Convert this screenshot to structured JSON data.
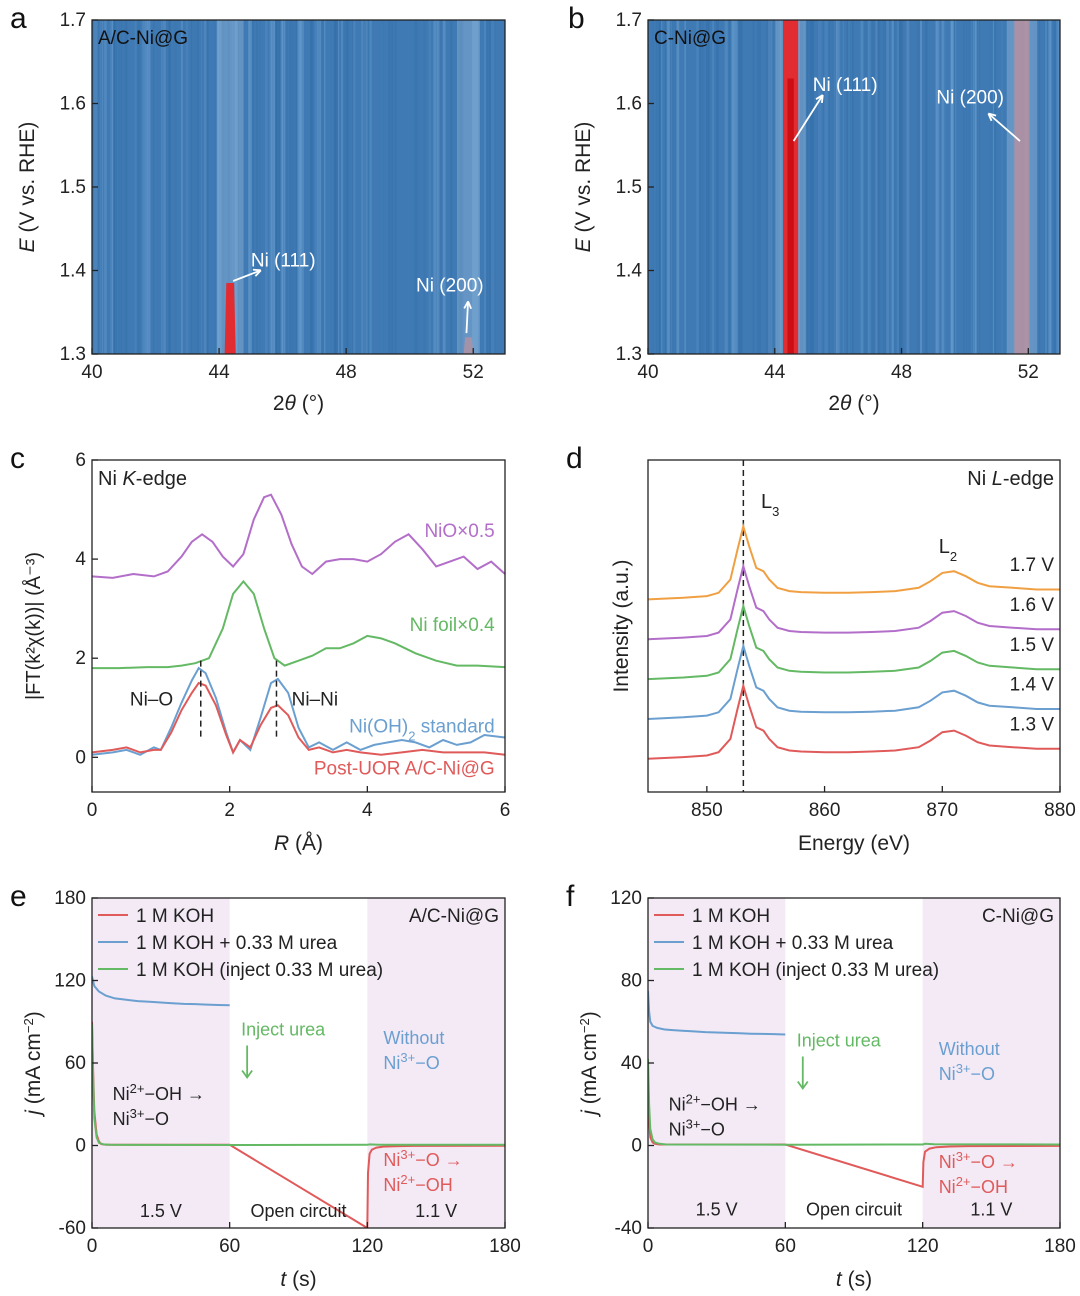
{
  "chart_data": [
    {
      "panel": "a",
      "type": "heatmap",
      "label": "A/C-Ni@G",
      "xlabel_parts": [
        "2",
        "θ",
        " (°)"
      ],
      "ylabel_parts": [
        "E",
        " (V vs. RHE)"
      ],
      "xlim": [
        40,
        53
      ],
      "ylim": [
        1.3,
        1.7
      ],
      "xticks": [
        40,
        44,
        48,
        52
      ],
      "yticks": [
        1.3,
        1.4,
        1.5,
        1.6,
        1.7
      ],
      "background_color": "#3f7ab4",
      "peaks": [
        {
          "label": "Ni (111)",
          "x": 44.35,
          "width": 0.35,
          "color": "#e8262a",
          "y_top": 1.385
        },
        {
          "label": "Ni (200)",
          "x": 51.85,
          "width": 0.3,
          "color": "#d99090",
          "y_top": 1.32
        }
      ],
      "annotations": [
        {
          "text": "Ni (111)",
          "x": 45.0,
          "y": 1.405
        },
        {
          "text": "Ni (200)",
          "x": 50.2,
          "y": 1.375
        }
      ]
    },
    {
      "panel": "b",
      "type": "heatmap",
      "label": "C-Ni@G",
      "xlabel_parts": [
        "2",
        "θ",
        " (°)"
      ],
      "ylabel_parts": [
        "E",
        " (V vs. RHE)"
      ],
      "xlim": [
        40,
        53
      ],
      "ylim": [
        1.3,
        1.7
      ],
      "xticks": [
        40,
        44,
        48,
        52
      ],
      "yticks": [
        1.3,
        1.4,
        1.5,
        1.6,
        1.7
      ],
      "background_color": "#3f7ab4",
      "peaks": [
        {
          "label": "Ni (111)",
          "x": 44.5,
          "width": 0.4,
          "color": "#e8262a",
          "y_top": 1.7
        },
        {
          "label": "Ni (200)",
          "x": 51.8,
          "width": 0.4,
          "color": "#d99090",
          "y_top": 1.7
        }
      ],
      "annotations": [
        {
          "text": "Ni (111)",
          "x": 45.2,
          "y": 1.615
        },
        {
          "text": "Ni (200)",
          "x": 49.1,
          "y": 1.6
        }
      ]
    },
    {
      "panel": "c",
      "type": "line",
      "label_parts": [
        "Ni ",
        "K",
        "-edge"
      ],
      "xlabel_parts": [
        "R",
        " (Å)"
      ],
      "ylabel": "|FT(k²χ(k))| (Å⁻³)",
      "xlim": [
        0,
        6
      ],
      "ylim": [
        -0.7,
        6
      ],
      "xticks": [
        0,
        2,
        4,
        6
      ],
      "yticks": [
        0,
        2,
        4,
        6
      ],
      "series": [
        {
          "name": "NiO×0.5",
          "color": "#b36ec9",
          "x": [
            0,
            0.3,
            0.6,
            0.9,
            1.1,
            1.3,
            1.45,
            1.6,
            1.75,
            1.9,
            2.05,
            2.2,
            2.35,
            2.5,
            2.6,
            2.75,
            2.9,
            3.05,
            3.2,
            3.4,
            3.6,
            3.8,
            4.0,
            4.2,
            4.4,
            4.6,
            4.8,
            5.0,
            5.2,
            5.4,
            5.6,
            5.8,
            6.0
          ],
          "y": [
            3.65,
            3.62,
            3.7,
            3.65,
            3.75,
            4.05,
            4.35,
            4.5,
            4.35,
            4.05,
            3.85,
            4.1,
            4.8,
            5.25,
            5.3,
            4.9,
            4.3,
            3.85,
            3.7,
            3.95,
            4.0,
            4.0,
            3.95,
            4.1,
            4.35,
            4.5,
            4.2,
            3.85,
            3.95,
            4.05,
            3.8,
            3.95,
            3.7
          ]
        },
        {
          "name": "Ni foil×0.4",
          "color": "#64b964",
          "x": [
            0,
            0.4,
            0.8,
            1.1,
            1.3,
            1.5,
            1.7,
            1.9,
            2.05,
            2.2,
            2.35,
            2.5,
            2.65,
            2.8,
            3.0,
            3.2,
            3.4,
            3.6,
            3.8,
            4.0,
            4.2,
            4.4,
            4.7,
            5.0,
            5.3,
            5.6,
            6.0
          ],
          "y": [
            1.8,
            1.8,
            1.82,
            1.82,
            1.85,
            1.9,
            2.0,
            2.6,
            3.3,
            3.55,
            3.3,
            2.6,
            2.0,
            1.85,
            1.95,
            2.05,
            2.2,
            2.2,
            2.3,
            2.45,
            2.4,
            2.3,
            2.1,
            1.95,
            1.85,
            1.85,
            1.82
          ]
        },
        {
          "name": "Ni(OH)₂ standard",
          "color": "#6a9fd0",
          "x": [
            0,
            0.3,
            0.5,
            0.7,
            0.9,
            1.0,
            1.15,
            1.3,
            1.45,
            1.55,
            1.65,
            1.8,
            1.95,
            2.05,
            2.15,
            2.3,
            2.45,
            2.6,
            2.7,
            2.85,
            3.0,
            3.15,
            3.3,
            3.5,
            3.7,
            3.9,
            4.1,
            4.3,
            4.5,
            4.7,
            4.9,
            5.1,
            5.3,
            5.5,
            5.7,
            6.0
          ],
          "y": [
            0.05,
            0.1,
            0.15,
            0.05,
            0.2,
            0.15,
            0.6,
            1.1,
            1.55,
            1.8,
            1.7,
            1.2,
            0.5,
            0.1,
            0.35,
            0.15,
            0.8,
            1.5,
            1.58,
            1.3,
            0.6,
            0.2,
            0.3,
            0.15,
            0.3,
            0.15,
            0.25,
            0.3,
            0.35,
            0.3,
            0.2,
            0.35,
            0.25,
            0.3,
            0.45,
            0.4
          ]
        },
        {
          "name": "Post-UOR A/C-Ni@G",
          "color": "#e05a5a",
          "x": [
            0,
            0.3,
            0.5,
            0.7,
            0.9,
            1.0,
            1.15,
            1.3,
            1.45,
            1.55,
            1.65,
            1.8,
            1.95,
            2.05,
            2.15,
            2.3,
            2.45,
            2.6,
            2.7,
            2.85,
            3.0,
            3.15,
            3.3,
            3.5,
            3.7,
            3.9,
            4.2,
            4.5,
            4.8,
            5.1,
            5.4,
            5.7,
            6.0
          ],
          "y": [
            0.1,
            0.15,
            0.2,
            0.1,
            0.15,
            0.15,
            0.5,
            0.95,
            1.3,
            1.5,
            1.45,
            1.05,
            0.45,
            0.1,
            0.35,
            0.2,
            0.65,
            1.0,
            1.05,
            0.85,
            0.4,
            0.15,
            0.2,
            0.1,
            0.15,
            0.1,
            0.05,
            0.1,
            0.15,
            0.1,
            0.1,
            0.1,
            0.05
          ]
        }
      ],
      "annotations": [
        {
          "text": "NiO×0.5",
          "x": 5.85,
          "y": 4.45,
          "color": "#b36ec9",
          "anchor": "end"
        },
        {
          "text": "Ni foil×0.4",
          "x": 5.85,
          "y": 2.55,
          "color": "#64b964",
          "anchor": "end"
        },
        {
          "text": "Ni(OH)",
          "sub": "2",
          "tail": " standard",
          "x": 5.85,
          "y": 0.5,
          "color": "#6a9fd0",
          "anchor": "end"
        },
        {
          "text": "Post-UOR A/C-Ni@G",
          "x": 5.85,
          "y": -0.35,
          "color": "#e05a5a",
          "anchor": "end"
        },
        {
          "text": "Ni–O",
          "x": 0.55,
          "y": 1.05,
          "color": "#222222",
          "anchor": "start"
        },
        {
          "text": "Ni–Ni",
          "x": 2.9,
          "y": 1.05,
          "color": "#222222",
          "anchor": "start"
        }
      ],
      "dashed_markers": [
        1.58,
        2.68
      ]
    },
    {
      "panel": "d",
      "type": "line",
      "label_parts": [
        "Ni ",
        "L",
        "-edge"
      ],
      "xlabel": "Energy (eV)",
      "ylabel": "Intensity (a.u.)",
      "xlim": [
        845,
        880
      ],
      "ylim": [
        0,
        10
      ],
      "xticks": [
        850,
        860,
        870,
        880
      ],
      "dashed_x": 853.1,
      "peak_labels": [
        {
          "text": "L",
          "sub": "3",
          "x": 854.6,
          "y": 8.55
        },
        {
          "text": "L",
          "sub": "2",
          "x": 869.7,
          "y": 7.2
        }
      ],
      "series": [
        {
          "name": "1.7 V",
          "color": "#f0a043",
          "offset": 5.8,
          "scale": 1.0
        },
        {
          "name": "1.6 V",
          "color": "#b36ec9",
          "offset": 4.6,
          "scale": 1.0
        },
        {
          "name": "1.5 V",
          "color": "#64b964",
          "offset": 3.4,
          "scale": 1.0
        },
        {
          "name": "1.4 V",
          "color": "#6a9fd0",
          "offset": 2.2,
          "scale": 1.0
        },
        {
          "name": "1.3 V",
          "color": "#e05a5a",
          "offset": 1.0,
          "scale": 1.0
        }
      ],
      "profile_x": [
        845,
        848,
        850,
        851,
        852,
        852.6,
        853.1,
        853.6,
        854.2,
        854.8,
        855.3,
        856,
        857,
        858,
        860,
        862,
        864,
        866,
        868,
        869,
        870,
        871,
        872,
        873,
        874,
        876,
        878,
        880
      ],
      "profile_y": [
        0.0,
        0.05,
        0.1,
        0.2,
        0.6,
        1.5,
        2.2,
        1.6,
        0.95,
        0.85,
        0.6,
        0.35,
        0.25,
        0.22,
        0.2,
        0.2,
        0.22,
        0.25,
        0.35,
        0.55,
        0.8,
        0.85,
        0.7,
        0.5,
        0.4,
        0.35,
        0.3,
        0.3
      ]
    },
    {
      "panel": "e",
      "type": "line",
      "label": "A/C-Ni@G",
      "xlabel_parts": [
        "t",
        " (s)"
      ],
      "ylabel_parts": [
        "j",
        " (mA cm",
        "−2",
        ")"
      ],
      "xlim": [
        0,
        180
      ],
      "ylim": [
        -60,
        180
      ],
      "xticks": [
        0,
        60,
        120,
        180
      ],
      "yticks": [
        -60,
        0,
        60,
        120,
        180
      ],
      "shaded_regions": [
        [
          0,
          60
        ],
        [
          120,
          180
        ]
      ],
      "legend": [
        "1 M KOH",
        "1 M KOH + 0.33 M urea",
        "1 M KOH (inject 0.33 M urea)"
      ],
      "legend_placement": "top-left",
      "series": [
        {
          "name": "1 M KOH",
          "color": "#e05a5a",
          "x": [
            0,
            0.5,
            1,
            2,
            3,
            4,
            6,
            60,
            120,
            120.3,
            121,
            122,
            124,
            127,
            132,
            140,
            180
          ],
          "y": [
            90,
            55,
            25,
            8,
            3,
            1,
            0.5,
            0.5,
            -60,
            -20,
            -6,
            -3,
            -1.5,
            -0.8,
            -0.5,
            -0.3,
            -0.2
          ]
        },
        {
          "name": "1 M KOH + 0.33 M urea",
          "color": "#6a9fd0",
          "x": [
            0,
            1,
            3,
            6,
            10,
            15,
            20,
            25,
            30,
            35,
            40,
            45,
            50,
            55,
            60
          ],
          "y": [
            123,
            116,
            112,
            109,
            107,
            106,
            105,
            104.5,
            104,
            103.5,
            103,
            102.8,
            102.5,
            102.2,
            102
          ]
        },
        {
          "name": "1 M KOH (inject 0.33 M urea)",
          "color": "#64b964",
          "x": [
            0,
            0.5,
            1,
            2,
            3,
            5,
            8,
            60,
            120,
            121,
            125,
            130,
            180
          ],
          "y": [
            88,
            50,
            20,
            6,
            2,
            0.8,
            0.5,
            0.4,
            0.5,
            0.8,
            0.6,
            0.5,
            0.5
          ]
        }
      ],
      "annotations": [
        {
          "lines": [
            [
              "Ni",
              "2+",
              "−OH →"
            ],
            [
              "Ni",
              "3+",
              "−O"
            ]
          ],
          "x": 9,
          "y": 33,
          "color": "#222222"
        },
        {
          "lines": [
            [
              "Inject urea"
            ]
          ],
          "x": 65,
          "y": 80,
          "color": "#64b964"
        },
        {
          "lines": [
            [
              "Without"
            ],
            [
              "Ni",
              "3+",
              "−O"
            ]
          ],
          "x": 127,
          "y": 74,
          "color": "#6a9fd0"
        },
        {
          "lines": [
            [
              "Ni",
              "3+",
              "−O →"
            ],
            [
              "Ni",
              "2+",
              "−OH"
            ]
          ],
          "x": 127,
          "y": -15,
          "color": "#e05a5a"
        },
        {
          "lines": [
            [
              "1.5 V"
            ]
          ],
          "x": 30,
          "y": -52,
          "color": "#222222",
          "anchor": "middle"
        },
        {
          "lines": [
            [
              "Open circuit"
            ]
          ],
          "x": 90,
          "y": -52,
          "color": "#222222",
          "anchor": "middle"
        },
        {
          "lines": [
            [
              "1.1 V"
            ]
          ],
          "x": 150,
          "y": -52,
          "color": "#222222",
          "anchor": "middle"
        }
      ]
    },
    {
      "panel": "f",
      "type": "line",
      "label": "C-Ni@G",
      "xlabel_parts": [
        "t",
        " (s)"
      ],
      "ylabel_parts": [
        "j",
        " (mA cm",
        "−2",
        ")"
      ],
      "xlim": [
        0,
        180
      ],
      "ylim": [
        -40,
        120
      ],
      "xticks": [
        0,
        60,
        120,
        180
      ],
      "yticks": [
        -40,
        0,
        40,
        80,
        120
      ],
      "shaded_regions": [
        [
          0,
          60
        ],
        [
          120,
          180
        ]
      ],
      "legend": [
        "1 M KOH",
        "1 M KOH + 0.33 M urea",
        "1 M KOH (inject 0.33 M urea)"
      ],
      "legend_placement": "top-left",
      "series": [
        {
          "name": "1 M KOH",
          "color": "#e05a5a",
          "x": [
            0,
            0.5,
            1,
            2,
            3,
            5,
            60,
            120,
            120.3,
            121,
            123,
            126,
            132,
            140,
            180
          ],
          "y": [
            30,
            12,
            4,
            1.5,
            0.8,
            0.5,
            0.5,
            -20,
            -8,
            -3,
            -1.5,
            -0.8,
            -0.5,
            -0.3,
            -0.2
          ]
        },
        {
          "name": "1 M KOH + 0.33 M urea",
          "color": "#6a9fd0",
          "x": [
            0,
            0.5,
            1,
            2,
            4,
            7,
            10,
            15,
            20,
            25,
            30,
            35,
            40,
            45,
            50,
            55,
            60
          ],
          "y": [
            75,
            65,
            60,
            58,
            57,
            56.3,
            56,
            55.6,
            55.3,
            55,
            54.8,
            54.6,
            54.4,
            54.2,
            54.1,
            54,
            53.8
          ]
        },
        {
          "name": "1 M KOH (inject 0.33 M urea)",
          "color": "#64b964",
          "x": [
            0,
            0.5,
            1,
            2,
            3,
            5,
            8,
            60,
            120,
            121,
            125,
            180
          ],
          "y": [
            42,
            20,
            8,
            3,
            1.5,
            0.8,
            0.5,
            0.4,
            0.5,
            0.8,
            0.6,
            0.5
          ]
        }
      ],
      "annotations": [
        {
          "lines": [
            [
              "Ni",
              "2+",
              "−OH →"
            ],
            [
              "Ni",
              "3+",
              "−O"
            ]
          ],
          "x": 9,
          "y": 17,
          "color": "#222222"
        },
        {
          "lines": [
            [
              "Inject urea"
            ]
          ],
          "x": 65,
          "y": 48,
          "color": "#64b964"
        },
        {
          "lines": [
            [
              "Without"
            ],
            [
              "Ni",
              "3+",
              "−O"
            ]
          ],
          "x": 127,
          "y": 44,
          "color": "#6a9fd0"
        },
        {
          "lines": [
            [
              "Ni",
              "3+",
              "−O →"
            ],
            [
              "Ni",
              "2+",
              "−OH"
            ]
          ],
          "x": 127,
          "y": -11,
          "color": "#e05a5a"
        },
        {
          "lines": [
            [
              "1.5 V"
            ]
          ],
          "x": 30,
          "y": -34,
          "color": "#222222",
          "anchor": "middle"
        },
        {
          "lines": [
            [
              "Open circuit"
            ]
          ],
          "x": 90,
          "y": -34,
          "color": "#222222",
          "anchor": "middle"
        },
        {
          "lines": [
            [
              "1.1 V"
            ]
          ],
          "x": 150,
          "y": -34,
          "color": "#222222",
          "anchor": "middle"
        }
      ]
    }
  ],
  "panel_letters": [
    "a",
    "b",
    "c",
    "d",
    "e",
    "f"
  ]
}
